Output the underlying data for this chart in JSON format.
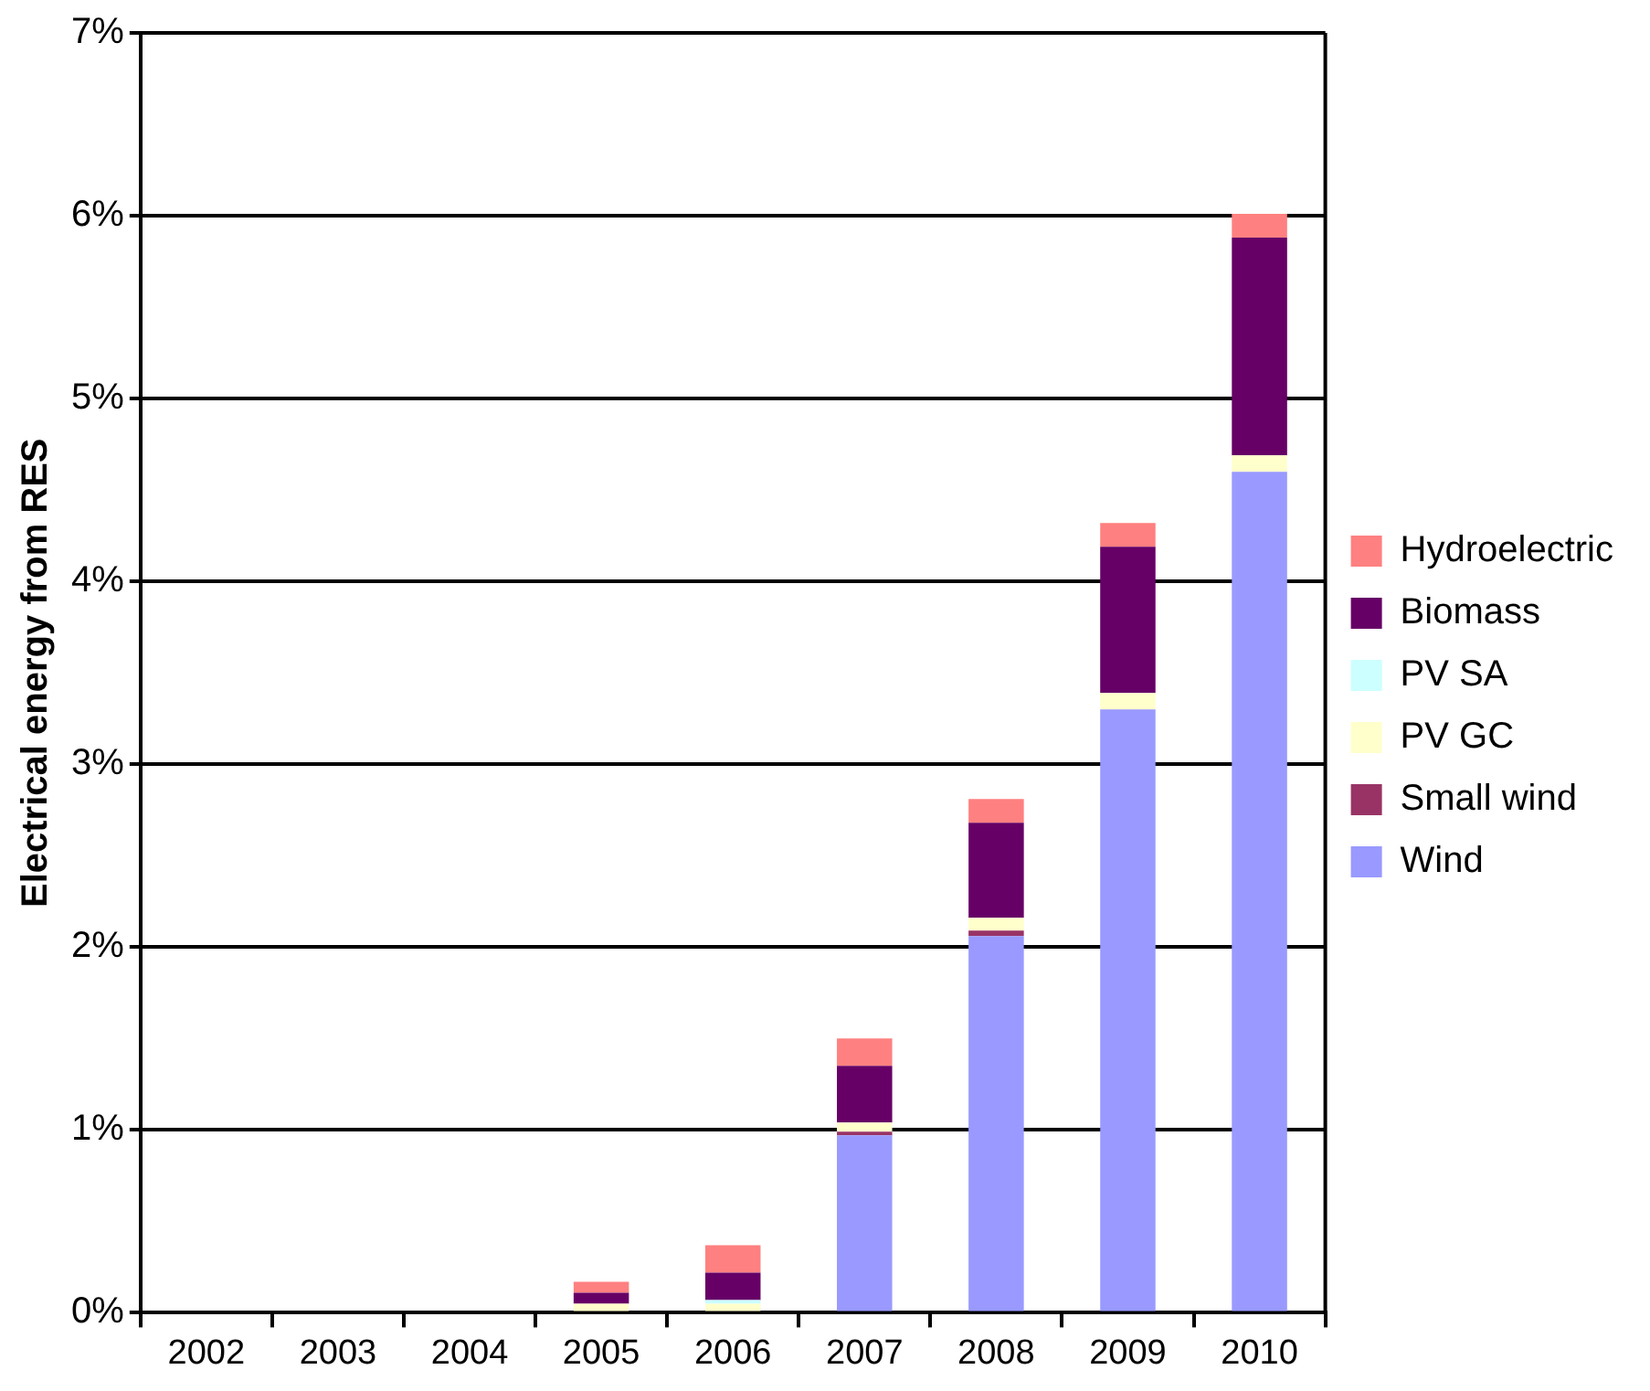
{
  "chart_data": {
    "type": "bar",
    "stacked": true,
    "ylabel": "Electrical energy from RES",
    "categories": [
      "2002",
      "2003",
      "2004",
      "2005",
      "2006",
      "2007",
      "2008",
      "2009",
      "2010"
    ],
    "series": [
      {
        "name": "Wind",
        "color": "#9999ff",
        "values": [
          0,
          0,
          0,
          0,
          0,
          0.97,
          2.06,
          3.3,
          4.6
        ]
      },
      {
        "name": "Small wind",
        "color": "#993366",
        "values": [
          0,
          0,
          0,
          0,
          0,
          0.02,
          0.03,
          0,
          0
        ]
      },
      {
        "name": "PV GC",
        "color": "#ffffcc",
        "values": [
          0,
          0,
          0,
          0.05,
          0.05,
          0.05,
          0.07,
          0.09,
          0.09
        ]
      },
      {
        "name": "PV SA",
        "color": "#ccffff",
        "values": [
          0,
          0,
          0,
          0,
          0.02,
          0,
          0,
          0,
          0
        ]
      },
      {
        "name": "Biomass",
        "color": "#660066",
        "values": [
          0,
          0,
          0,
          0.06,
          0.15,
          0.31,
          0.52,
          0.8,
          1.19
        ]
      },
      {
        "name": "Hydroelectric",
        "color": "#ff8080",
        "values": [
          0,
          0,
          0,
          0.06,
          0.15,
          0.15,
          0.13,
          0.13,
          0.13
        ]
      }
    ],
    "ylim": [
      0,
      7
    ],
    "yticks": [
      {
        "value": 0,
        "label": "0%"
      },
      {
        "value": 1,
        "label": "1%"
      },
      {
        "value": 2,
        "label": "2%"
      },
      {
        "value": 3,
        "label": "3%"
      },
      {
        "value": 4,
        "label": "4%"
      },
      {
        "value": 5,
        "label": "5%"
      },
      {
        "value": 6,
        "label": "6%"
      },
      {
        "value": 7,
        "label": "7%"
      }
    ],
    "grid": "y",
    "legend": "right"
  }
}
